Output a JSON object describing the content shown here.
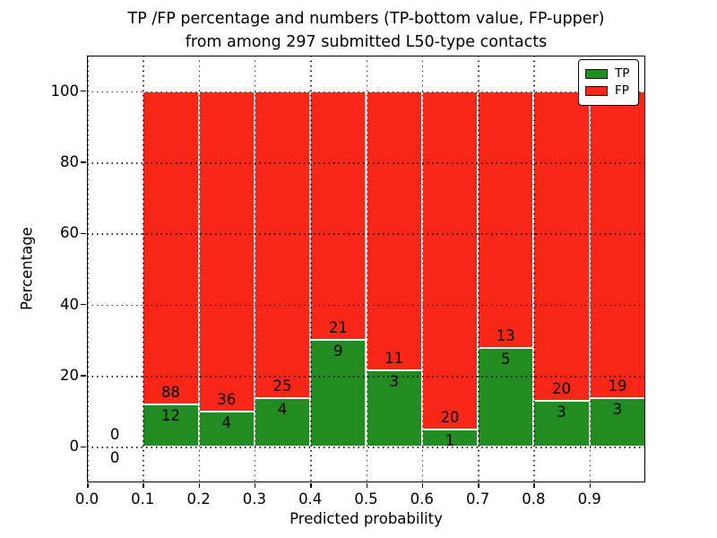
{
  "chart_data": {
    "type": "bar",
    "stacked": true,
    "percentage_normalized": true,
    "title_lines": [
      "TP /FP percentage and numbers (TP-bottom value, FP-upper)",
      "from among 297 submitted L50-type contacts"
    ],
    "xlabel": "Predicted probability",
    "ylabel": "Percentage",
    "xlim": [
      0.0,
      1.0
    ],
    "ylim": [
      -10,
      110
    ],
    "xticks": [
      "0.0",
      "0.1",
      "0.2",
      "0.3",
      "0.4",
      "0.5",
      "0.6",
      "0.7",
      "0.8",
      "0.9"
    ],
    "yticks": [
      "0",
      "20",
      "40",
      "60",
      "80",
      "100"
    ],
    "grid": "dotted, drawn over bars",
    "legend_position": "upper right",
    "legend": [
      {
        "label": "TP",
        "color": "#228B22"
      },
      {
        "label": "FP",
        "color": "#F82617"
      }
    ],
    "colors": {
      "tp": "#228B22",
      "fp": "#F82617",
      "bar_edge": "#FFFFFF",
      "text": "#000000",
      "grid": "#000000"
    },
    "bins": [
      {
        "range": [
          0.0,
          0.1
        ],
        "tp": 0,
        "fp": 0,
        "tp_pct": 0,
        "fp_pct": 0
      },
      {
        "range": [
          0.1,
          0.2
        ],
        "tp": 12,
        "fp": 88,
        "tp_pct": 12.0,
        "fp_pct": 88.0
      },
      {
        "range": [
          0.2,
          0.3
        ],
        "tp": 4,
        "fp": 36,
        "tp_pct": 10.0,
        "fp_pct": 90.0
      },
      {
        "range": [
          0.3,
          0.4
        ],
        "tp": 4,
        "fp": 25,
        "tp_pct": 13.79,
        "fp_pct": 86.21
      },
      {
        "range": [
          0.4,
          0.5
        ],
        "tp": 9,
        "fp": 21,
        "tp_pct": 30.0,
        "fp_pct": 70.0
      },
      {
        "range": [
          0.5,
          0.6
        ],
        "tp": 3,
        "fp": 11,
        "tp_pct": 21.43,
        "fp_pct": 78.57
      },
      {
        "range": [
          0.6,
          0.7
        ],
        "tp": 1,
        "fp": 20,
        "tp_pct": 4.76,
        "fp_pct": 95.24
      },
      {
        "range": [
          0.7,
          0.8
        ],
        "tp": 5,
        "fp": 13,
        "tp_pct": 27.78,
        "fp_pct": 72.22
      },
      {
        "range": [
          0.8,
          0.9
        ],
        "tp": 3,
        "fp": 20,
        "tp_pct": 13.04,
        "fp_pct": 86.96
      },
      {
        "range": [
          0.9,
          1.0
        ],
        "tp": 3,
        "fp": 19,
        "tp_pct": 13.64,
        "fp_pct": 86.36
      }
    ]
  }
}
